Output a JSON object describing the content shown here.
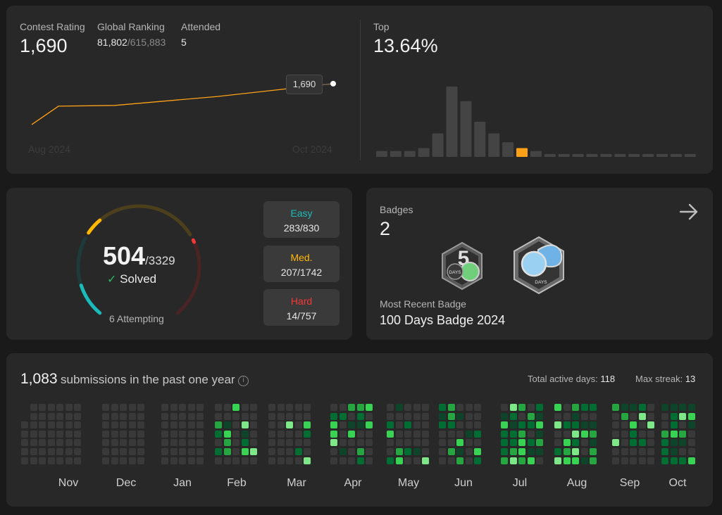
{
  "contest": {
    "rating_label": "Contest Rating",
    "rating_value": "1,690",
    "ranking_label": "Global Ranking",
    "ranking_value": "81,802",
    "ranking_total": "/615,883",
    "attended_label": "Attended",
    "attended_value": "5",
    "tooltip_value": "1,690",
    "axis_start": "Aug 2024",
    "axis_end": "Oct 2024",
    "line_color": "#ffa116",
    "rating_history": [
      1530,
      1602,
      1605,
      1640,
      1690
    ]
  },
  "top": {
    "label": "Top",
    "value": "13.64%",
    "highlight_color": "#ffa116",
    "histogram": [
      2,
      2,
      2,
      3,
      8,
      24,
      19,
      12,
      8,
      5,
      3,
      2,
      1,
      1,
      1,
      1,
      1,
      1,
      1,
      1,
      1,
      1,
      1
    ],
    "highlight_index": 10
  },
  "solved": {
    "count": "504",
    "total": "/3329",
    "check_icon": "check-icon",
    "solved_label": "Solved",
    "attempting_label": "6 Attempting",
    "easy_label": "Easy",
    "easy_value": "283/830",
    "easy_color": "#1cbaba",
    "med_label": "Med.",
    "med_value": "207/1742",
    "med_color": "#ffb700",
    "hard_label": "Hard",
    "hard_value": "14/757",
    "hard_color": "#f63737"
  },
  "badges": {
    "label": "Badges",
    "count": "2",
    "recent_label": "Most Recent Badge",
    "recent_value": "100 Days Badge 2024",
    "badge1_text": "DAYS",
    "badge2_text": "DAYS",
    "arrow_icon": "arrow-right-icon"
  },
  "heatmap": {
    "count": "1,083",
    "title": "submissions in the past one year",
    "info_icon": "info-icon",
    "active_days_label": "Total active days:",
    "active_days_value": "118",
    "streak_label": "Max streak:",
    "streak_value": "13",
    "months": [
      "Nov",
      "Dec",
      "Jan",
      "Feb",
      "Mar",
      "Apr",
      "May",
      "Jun",
      "Jul",
      "Aug",
      "Sep",
      "Oct"
    ]
  }
}
